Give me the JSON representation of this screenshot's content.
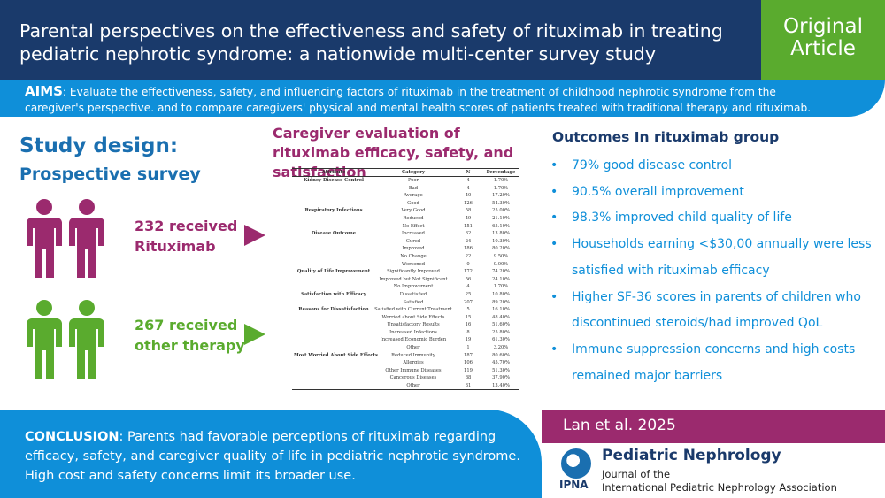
{
  "header": {
    "title": "Parental perspectives on the effectiveness and safety of rituximab in treating pediatric nephrotic syndrome: a nationwide multi-center survey study",
    "badge_line1": "Original",
    "badge_line2": "Article"
  },
  "aims": {
    "label": "AIMS",
    "text": ": Evaluate the effectiveness, safety, and influencing factors of rituximab in the treatment of childhood nephrotic syndrome from the caregiver's perspective. and to compare caregivers' physical and mental health scores of patients treated with traditional therapy and rituximab."
  },
  "study_design": {
    "title": "Study design:",
    "subtitle": "Prospective survey",
    "group1_line1": "232 received",
    "group1_line2": "Rituximab",
    "group2_line1": "267 received",
    "group2_line2": "other therapy"
  },
  "caregiver": {
    "title": "Caregiver evaluation of rituximab efficacy, safety, and satisfaction",
    "table_headers": [
      "Attribute",
      "Category",
      "N",
      "Percentage"
    ],
    "rows": [
      [
        "Kidney Disease Control",
        "Poor",
        "4",
        "1.70%"
      ],
      [
        "",
        "Bad",
        "4",
        "1.70%"
      ],
      [
        "",
        "Average",
        "40",
        "17.20%"
      ],
      [
        "",
        "Good",
        "126",
        "54.30%"
      ],
      [
        "Respiratory Infections",
        "Very Good",
        "58",
        "25.00%"
      ],
      [
        "",
        "Reduced",
        "49",
        "21.10%"
      ],
      [
        "",
        "No Effect",
        "151",
        "65.10%"
      ],
      [
        "Disease Outcome",
        "Increased",
        "32",
        "13.80%"
      ],
      [
        "",
        "Cured",
        "24",
        "10.30%"
      ],
      [
        "",
        "Improved",
        "186",
        "80.20%"
      ],
      [
        "",
        "No Change",
        "22",
        "9.50%"
      ],
      [
        "",
        "Worsened",
        "0",
        "0.00%"
      ],
      [
        "Quality of Life Improvement",
        "Significantly Improved",
        "172",
        "74.20%"
      ],
      [
        "",
        "Improved but Not Significant",
        "56",
        "24.10%"
      ],
      [
        "",
        "No Improvement",
        "4",
        "1.70%"
      ],
      [
        "Satisfaction with Efficacy",
        "Dissatisfied",
        "25",
        "10.80%"
      ],
      [
        "",
        "Satisfied",
        "207",
        "89.20%"
      ],
      [
        "Reasons for Dissatisfaction",
        "Satisfied with Current Treatment",
        "5",
        "16.10%"
      ],
      [
        "",
        "Worried about Side Effects",
        "15",
        "48.40%"
      ],
      [
        "",
        "Unsatisfactory Results",
        "16",
        "51.60%"
      ],
      [
        "",
        "Increased Infections",
        "8",
        "25.80%"
      ],
      [
        "",
        "Increased Economic Burden",
        "19",
        "61.30%"
      ],
      [
        "",
        "Other",
        "1",
        "3.20%"
      ],
      [
        "Most Worried About Side Effects",
        "Reduced Immunity",
        "187",
        "80.60%"
      ],
      [
        "",
        "Allergies",
        "106",
        "45.70%"
      ],
      [
        "",
        "Other Immune Diseases",
        "119",
        "51.30%"
      ],
      [
        "",
        "Cancerous Diseases",
        "88",
        "37.90%"
      ],
      [
        "",
        "Other",
        "31",
        "13.40%"
      ]
    ]
  },
  "outcomes": {
    "title": "Outcomes In rituximab group",
    "items": [
      "79% good disease control",
      "90.5% overall improvement",
      "98.3% improved child quality of life",
      "Households earning <$30,00 annually were less satisfied with rituximab efficacy",
      "Higher SF-36 scores in parents of children who discontinued steroids/had improved QoL",
      "Immune suppression concerns and high costs remained major barriers"
    ]
  },
  "conclusion": {
    "label": "CONCLUSION",
    "text": ": Parents had favorable perceptions of rituximab regarding efficacy, safety, and caregiver quality of life in pediatric nephrotic syndrome. High cost and safety concerns limit its broader use."
  },
  "citation": "Lan et al. 2025",
  "journal": {
    "name": "Pediatric Nephrology",
    "sub1": "Journal of the",
    "sub2": "International Pediatric Nephrology Association",
    "logo_text": "IPNA"
  },
  "colors": {
    "navy": "#1a3a6b",
    "green": "#5aab2e",
    "blue": "#0f8fd9",
    "magenta": "#9b2a6e"
  }
}
